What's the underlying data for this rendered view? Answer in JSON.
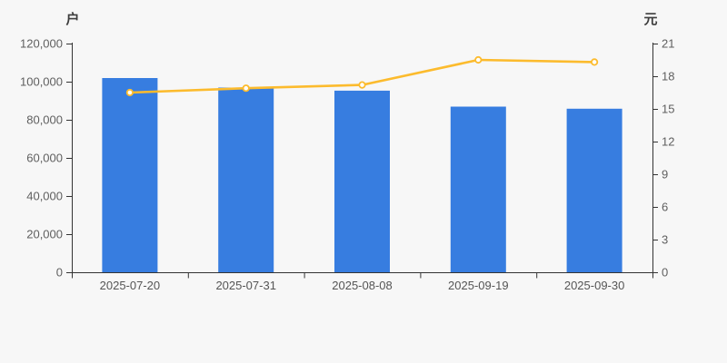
{
  "chart_data": {
    "type": "bar+line",
    "title": "",
    "categories": [
      "2025-07-20",
      "2025-07-31",
      "2025-08-08",
      "2025-09-19",
      "2025-09-30"
    ],
    "series": [
      {
        "name": "bar-series",
        "type": "bar",
        "axis": "left",
        "unit": "户",
        "values": [
          101900,
          96900,
          95300,
          86900,
          85800
        ],
        "color": "#377de0"
      },
      {
        "name": "line-series",
        "type": "line",
        "axis": "right",
        "unit": "元",
        "values": [
          16.5,
          16.9,
          17.2,
          19.5,
          19.3
        ],
        "color": "#fcbb2d"
      }
    ],
    "left_axis": {
      "label": "户",
      "min": 0,
      "max": 120000,
      "tick_step": 20000,
      "tick_labels": [
        "0",
        "20,000",
        "40,000",
        "60,000",
        "80,000",
        "100,000",
        "120,000"
      ]
    },
    "right_axis": {
      "label": "元",
      "min": 0,
      "max": 21,
      "tick_step": 3,
      "tick_labels": [
        "0",
        "3",
        "6",
        "9",
        "12",
        "15",
        "18",
        "21"
      ]
    },
    "grid": false,
    "legend": null
  },
  "colors": {
    "background": "#f7f7f7",
    "bar": "#377de0",
    "line": "#fcbb2d",
    "marker_fill": "#ffffff",
    "axis_line": "#333333",
    "tick_label": "#5f5f5f",
    "category_label": "#555555"
  }
}
